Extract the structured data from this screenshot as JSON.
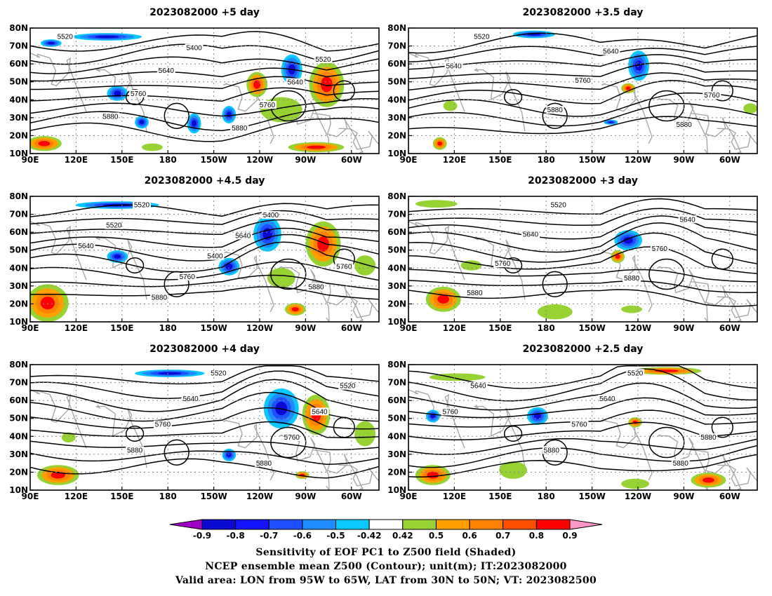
{
  "panels": [
    {
      "title": "2023082000 +5 day",
      "contour_labels": [
        "5520",
        "5400",
        "5520",
        "5640",
        "5640",
        "5760",
        "5760",
        "5880",
        "5880"
      ]
    },
    {
      "title": "2023082000 +3.5 day",
      "contour_labels": [
        "5520",
        "5640",
        "5640",
        "5760",
        "5760",
        "5880",
        "5880"
      ]
    },
    {
      "title": "2023082000 +4.5 day",
      "contour_labels": [
        "5520",
        "5400",
        "5520",
        "5640",
        "5640",
        "5400",
        "5760",
        "5760",
        "5880",
        "5880"
      ]
    },
    {
      "title": "2023082000 +3 day",
      "contour_labels": [
        "5520",
        "5640",
        "5640",
        "5760",
        "5760",
        "5880",
        "5880"
      ]
    },
    {
      "title": "2023082000 +4 day",
      "contour_labels": [
        "5520",
        "5520",
        "5640",
        "5640",
        "5760",
        "5760",
        "5880",
        "5880"
      ]
    },
    {
      "title": "2023082000 +2.5 day",
      "contour_labels": [
        "5520",
        "5640",
        "5640",
        "5760",
        "5760",
        "5880",
        "5880",
        "5880"
      ]
    }
  ],
  "axes": {
    "lat_ticks": [
      "80N",
      "70N",
      "60N",
      "50N",
      "40N",
      "30N",
      "20N",
      "10N"
    ],
    "lon_ticks": [
      "90E",
      "120E",
      "150E",
      "180",
      "150W",
      "120W",
      "90W",
      "60W"
    ]
  },
  "colorbar": {
    "labels": [
      "-0.9",
      "-0.8",
      "-0.7",
      "-0.6",
      "-0.5",
      "-0.42",
      "0.42",
      "0.5",
      "0.6",
      "0.7",
      "0.8",
      "0.9"
    ],
    "colors": [
      "#a000c8",
      "#0a0ad2",
      "#1414ff",
      "#1e50ff",
      "#1e8cff",
      "#0ac8ff",
      "#ffffff",
      "#96d232",
      "#ffa000",
      "#ff8200",
      "#ff5000",
      "#ff0000",
      "#ff96c8"
    ]
  },
  "captions": [
    "Sensitivity of EOF PC1 to Z500 field (Shaded)",
    "NCEP ensemble mean Z500 (Contour); unit(m); IT:2023082000",
    "Valid area: LON from 95W to 65W, LAT from 30N to 50N; VT: 2023082500"
  ]
}
